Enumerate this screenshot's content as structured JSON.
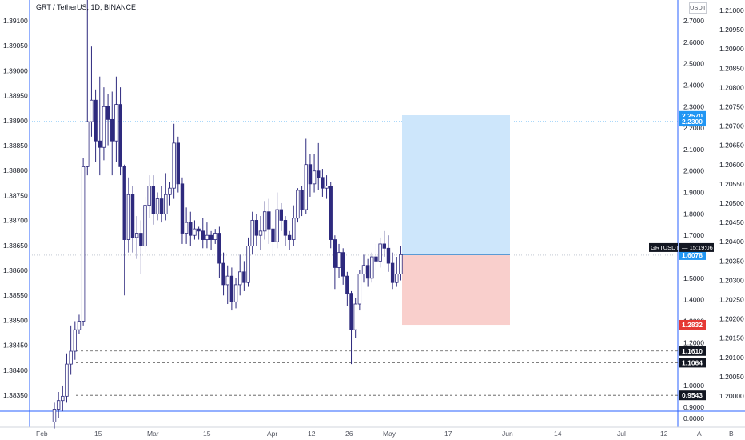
{
  "legend": "GRT / TetherUS, 1D, BINANCE",
  "currency_badge": "USDT",
  "scale_buttons": [
    "A",
    "B"
  ],
  "colors": {
    "up": "#ffffff",
    "down": "#2e2a7e",
    "wick": "#2e2a7e",
    "profit_zone": "#cde6fb",
    "loss_zone": "#f9cfcc",
    "target_label": "#2196f3",
    "stop_label": "#e53935",
    "level_label": "#131722",
    "axis_line": "#2962ff"
  },
  "chart_data": {
    "type": "candlestick",
    "symbol_label": "GRTUSDT",
    "countdown": "15:19:06",
    "left_axis": {
      "ticks": [
        "1.39100",
        "1.39050",
        "1.39000",
        "1.38950",
        "1.38900",
        "1.38850",
        "1.38800",
        "1.38750",
        "1.38700",
        "1.38650",
        "1.38600",
        "1.38550",
        "1.38500",
        "1.38450",
        "1.38400",
        "1.38350"
      ],
      "range": [
        1.383,
        1.3912
      ]
    },
    "middle_axis": {
      "ticks": [
        "2.7000",
        "2.6000",
        "2.5000",
        "2.4000",
        "2.3000",
        "2.2000",
        "2.1000",
        "2.0000",
        "1.9000",
        "1.8000",
        "1.7000",
        "1.6000",
        "1.5000",
        "1.4000",
        "1.3000",
        "1.2000",
        "1.1000",
        "1.0000",
        "0.9000",
        "0.0000"
      ]
    },
    "right_axis": {
      "ticks": [
        "1.21000",
        "1.20950",
        "1.20900",
        "1.20850",
        "1.20800",
        "1.20750",
        "1.20700",
        "1.20650",
        "1.20600",
        "1.20550",
        "1.20500",
        "1.20450",
        "1.20400",
        "1.20350",
        "1.20300",
        "1.20250",
        "1.20200",
        "1.20150",
        "1.20100",
        "1.20050",
        "1.20000"
      ]
    },
    "x_ticks": [
      "Feb",
      "15",
      "Mar",
      "15",
      "Apr",
      "12",
      "26",
      "May",
      "17",
      "Jun",
      "14",
      "Jul",
      "12"
    ],
    "candles": [
      [
        0.83,
        0.89,
        0.8,
        0.92
      ],
      [
        0.89,
        0.93,
        0.85,
        0.97
      ],
      [
        0.93,
        0.95,
        0.88,
        1.0
      ],
      [
        0.95,
        1.1,
        0.92,
        1.15
      ],
      [
        1.1,
        1.16,
        1.05,
        1.28
      ],
      [
        1.16,
        1.26,
        1.12,
        1.3
      ],
      [
        1.26,
        1.3,
        1.24,
        1.33
      ],
      [
        1.3,
        2.02,
        1.28,
        2.06
      ],
      [
        2.02,
        2.23,
        1.98,
        2.83
      ],
      [
        2.23,
        2.33,
        2.16,
        2.58
      ],
      [
        2.33,
        2.14,
        2.04,
        2.38
      ],
      [
        2.14,
        2.11,
        1.98,
        2.44
      ],
      [
        2.11,
        2.3,
        2.05,
        2.39
      ],
      [
        2.3,
        2.24,
        2.12,
        2.36
      ],
      [
        2.24,
        2.14,
        1.98,
        2.37
      ],
      [
        2.14,
        2.31,
        2.04,
        2.44
      ],
      [
        2.31,
        2.02,
        1.98,
        2.39
      ],
      [
        2.02,
        1.68,
        1.42,
        2.03
      ],
      [
        1.68,
        1.89,
        1.62,
        1.97
      ],
      [
        1.89,
        1.69,
        1.62,
        1.93
      ],
      [
        1.69,
        1.71,
        1.59,
        1.79
      ],
      [
        1.71,
        1.65,
        1.52,
        1.77
      ],
      [
        1.65,
        1.84,
        1.62,
        1.88
      ],
      [
        1.84,
        1.93,
        1.78,
        1.98
      ],
      [
        1.93,
        1.8,
        1.75,
        1.98
      ],
      [
        1.8,
        1.87,
        1.77,
        1.9
      ],
      [
        1.87,
        1.8,
        1.76,
        1.93
      ],
      [
        1.8,
        1.89,
        1.77,
        1.99
      ],
      [
        1.89,
        1.92,
        1.84,
        1.95
      ],
      [
        1.92,
        2.13,
        1.87,
        2.22
      ],
      [
        2.13,
        1.94,
        1.9,
        2.16
      ],
      [
        1.94,
        1.71,
        1.66,
        1.97
      ],
      [
        1.71,
        1.76,
        1.66,
        1.83
      ],
      [
        1.76,
        1.7,
        1.65,
        1.81
      ],
      [
        1.7,
        1.73,
        1.68,
        1.77
      ],
      [
        1.73,
        1.72,
        1.68,
        1.74
      ],
      [
        1.72,
        1.68,
        1.64,
        1.78
      ],
      [
        1.68,
        1.7,
        1.64,
        1.76
      ],
      [
        1.7,
        1.68,
        1.63,
        1.72
      ],
      [
        1.68,
        1.71,
        1.66,
        1.73
      ],
      [
        1.71,
        1.57,
        1.5,
        1.74
      ],
      [
        1.57,
        1.47,
        1.42,
        1.62
      ],
      [
        1.47,
        1.51,
        1.38,
        1.56
      ],
      [
        1.51,
        1.39,
        1.35,
        1.55
      ],
      [
        1.39,
        1.47,
        1.36,
        1.5
      ],
      [
        1.47,
        1.53,
        1.42,
        1.61
      ],
      [
        1.53,
        1.48,
        1.44,
        1.58
      ],
      [
        1.48,
        1.65,
        1.46,
        1.69
      ],
      [
        1.65,
        1.77,
        1.61,
        1.81
      ],
      [
        1.77,
        1.7,
        1.65,
        1.8
      ],
      [
        1.7,
        1.72,
        1.63,
        1.79
      ],
      [
        1.72,
        1.81,
        1.68,
        1.86
      ],
      [
        1.81,
        1.73,
        1.66,
        1.87
      ],
      [
        1.73,
        1.67,
        1.6,
        1.75
      ],
      [
        1.67,
        1.82,
        1.64,
        1.9
      ],
      [
        1.82,
        1.77,
        1.72,
        1.85
      ],
      [
        1.77,
        1.7,
        1.65,
        1.79
      ],
      [
        1.7,
        1.68,
        1.63,
        1.72
      ],
      [
        1.68,
        1.78,
        1.65,
        1.84
      ],
      [
        1.78,
        1.91,
        1.76,
        1.92
      ],
      [
        1.91,
        1.82,
        1.79,
        1.93
      ],
      [
        1.82,
        2.03,
        1.8,
        2.15
      ],
      [
        2.03,
        1.94,
        1.88,
        2.08
      ],
      [
        1.94,
        2.0,
        1.9,
        2.08
      ],
      [
        2.0,
        1.97,
        1.91,
        2.13
      ],
      [
        1.97,
        1.92,
        1.88,
        2.01
      ],
      [
        1.92,
        1.93,
        1.87,
        1.98
      ],
      [
        1.93,
        1.68,
        1.64,
        1.95
      ],
      [
        1.68,
        1.55,
        1.45,
        1.7
      ],
      [
        1.55,
        1.62,
        1.5,
        1.66
      ],
      [
        1.62,
        1.51,
        1.47,
        1.64
      ],
      [
        1.51,
        1.43,
        1.37,
        1.53
      ],
      [
        1.43,
        1.26,
        1.1,
        1.44
      ],
      [
        1.26,
        1.38,
        1.22,
        1.41
      ],
      [
        1.38,
        1.52,
        1.35,
        1.54
      ],
      [
        1.52,
        1.56,
        1.48,
        1.61
      ],
      [
        1.56,
        1.5,
        1.46,
        1.59
      ],
      [
        1.5,
        1.6,
        1.48,
        1.62
      ],
      [
        1.6,
        1.58,
        1.54,
        1.66
      ],
      [
        1.58,
        1.66,
        1.55,
        1.69
      ],
      [
        1.66,
        1.64,
        1.6,
        1.72
      ],
      [
        1.64,
        1.57,
        1.53,
        1.7
      ],
      [
        1.57,
        1.48,
        1.45,
        1.62
      ],
      [
        1.48,
        1.52,
        1.46,
        1.6
      ],
      [
        1.52,
        1.61,
        1.49,
        1.65
      ]
    ],
    "levels": [
      {
        "label": "2.2570",
        "value": 2.257,
        "kind": "target"
      },
      {
        "label": "2.2300",
        "value": 2.23,
        "kind": "target"
      },
      {
        "label": "1.6078",
        "value": 1.6078,
        "kind": "current"
      },
      {
        "label": "1.2832",
        "value": 1.2832,
        "kind": "stop"
      },
      {
        "label": "1.1610",
        "value": 1.161,
        "kind": "level"
      },
      {
        "label": "1.1064",
        "value": 1.1064,
        "kind": "level"
      },
      {
        "label": "0.9543",
        "value": 0.9543,
        "kind": "level"
      }
    ],
    "position": {
      "entry": 1.61,
      "target": 2.26,
      "stop": 1.283
    }
  }
}
